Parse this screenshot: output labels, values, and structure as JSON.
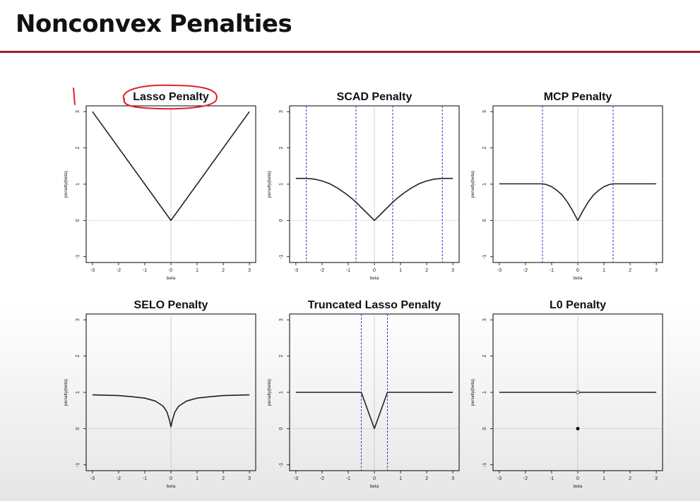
{
  "slide": {
    "title": "Nonconvex Penalties",
    "accent_color": "#9b1b30",
    "annotation_color": "#e0202c"
  },
  "chart_data": [
    {
      "type": "line",
      "title": "Lasso Penalty",
      "xlabel": "beta",
      "ylabel": "penalty(beta)",
      "xlim": [
        -3,
        3
      ],
      "ylim": [
        -1,
        3
      ],
      "xticks": [
        "-3",
        "-2",
        "-1",
        "0",
        "1",
        "2",
        "3"
      ],
      "yticks": [
        "-1",
        "0",
        "1",
        "2",
        "3"
      ],
      "vlines": [],
      "series": [
        {
          "x": [
            -3,
            0,
            3
          ],
          "y": [
            3,
            0,
            3
          ]
        }
      ],
      "points": []
    },
    {
      "type": "line",
      "title": "SCAD Penalty",
      "xlabel": "beta",
      "ylabel": "penalty(beta)",
      "xlim": [
        -3,
        3
      ],
      "ylim": [
        -1,
        3
      ],
      "xticks": [
        "-3",
        "-2",
        "-1",
        "0",
        "1",
        "2",
        "3"
      ],
      "yticks": [
        "-1",
        "0",
        "1",
        "2",
        "3"
      ],
      "vlines": [
        -2.6,
        -0.7,
        0.7,
        2.6
      ],
      "series": [
        {
          "x": [
            -3.0,
            -2.6,
            -2.3,
            -2.0,
            -1.7,
            -1.4,
            -1.1,
            -0.85,
            -0.7,
            -0.35,
            0.0,
            0.35,
            0.7,
            0.85,
            1.1,
            1.4,
            1.7,
            2.0,
            2.3,
            2.6,
            3.0
          ],
          "y": [
            1.16,
            1.16,
            1.14,
            1.09,
            1.01,
            0.89,
            0.74,
            0.6,
            0.5,
            0.25,
            0.0,
            0.25,
            0.5,
            0.6,
            0.74,
            0.89,
            1.01,
            1.09,
            1.14,
            1.16,
            1.16
          ]
        }
      ],
      "points": []
    },
    {
      "type": "line",
      "title": "MCP Penalty",
      "xlabel": "beta",
      "ylabel": "penalty(beta)",
      "xlim": [
        -3,
        3
      ],
      "ylim": [
        -1,
        3
      ],
      "xticks": [
        "-3",
        "-2",
        "-1",
        "0",
        "1",
        "2",
        "3"
      ],
      "yticks": [
        "-1",
        "0",
        "1",
        "2",
        "3"
      ],
      "vlines": [
        -1.35,
        1.35
      ],
      "series": [
        {
          "x": [
            -3.0,
            -1.35,
            -1.2,
            -1.0,
            -0.8,
            -0.6,
            -0.4,
            -0.2,
            0.0,
            0.2,
            0.4,
            0.6,
            0.8,
            1.0,
            1.2,
            1.35,
            3.0
          ],
          "y": [
            1.01,
            1.01,
            0.99,
            0.93,
            0.83,
            0.7,
            0.51,
            0.27,
            0.0,
            0.27,
            0.51,
            0.7,
            0.83,
            0.93,
            0.99,
            1.01,
            1.01
          ]
        }
      ],
      "points": []
    },
    {
      "type": "line",
      "title": "SELO Penalty",
      "xlabel": "beta",
      "ylabel": "penalty(beta)",
      "xlim": [
        -3,
        3
      ],
      "ylim": [
        -1,
        3
      ],
      "xticks": [
        "-3",
        "-2",
        "-1",
        "0",
        "1",
        "2",
        "3"
      ],
      "yticks": [
        "-1",
        "0",
        "1",
        "2",
        "3"
      ],
      "vlines": [],
      "series": [
        {
          "x": [
            -3.0,
            -2.0,
            -1.5,
            -1.0,
            -0.6,
            -0.3,
            -0.15,
            -0.05,
            0.0,
            0.05,
            0.15,
            0.3,
            0.6,
            1.0,
            1.5,
            2.0,
            3.0
          ],
          "y": [
            0.93,
            0.91,
            0.88,
            0.84,
            0.76,
            0.62,
            0.46,
            0.22,
            0.05,
            0.22,
            0.46,
            0.62,
            0.76,
            0.84,
            0.88,
            0.91,
            0.93
          ]
        }
      ],
      "points": []
    },
    {
      "type": "line",
      "title": "Truncated Lasso Penalty",
      "xlabel": "beta",
      "ylabel": "penalty(beta)",
      "xlim": [
        -3,
        3
      ],
      "ylim": [
        -1,
        3
      ],
      "xticks": [
        "-3",
        "-2",
        "-1",
        "0",
        "1",
        "2",
        "3"
      ],
      "yticks": [
        "-1",
        "0",
        "1",
        "2",
        "3"
      ],
      "vlines": [
        -0.5,
        0.5
      ],
      "series": [
        {
          "x": [
            -3.0,
            -0.5,
            0.0,
            0.5,
            3.0
          ],
          "y": [
            1.0,
            1.0,
            0.0,
            1.0,
            1.0
          ]
        }
      ],
      "points": []
    },
    {
      "type": "line",
      "title": "L0 Penalty",
      "xlabel": "beta",
      "ylabel": "penalty(beta)",
      "xlim": [
        -3,
        3
      ],
      "ylim": [
        -1,
        3
      ],
      "xticks": [
        "-3",
        "-2",
        "-1",
        "0",
        "1",
        "2",
        "3"
      ],
      "yticks": [
        "-1",
        "0",
        "1",
        "2",
        "3"
      ],
      "vlines": [],
      "series": [
        {
          "x": [
            -3.0,
            3.0
          ],
          "y": [
            1.0,
            1.0
          ]
        }
      ],
      "points": [
        {
          "x": 0,
          "y": 1,
          "style": "open"
        },
        {
          "x": 0,
          "y": 0,
          "style": "filled"
        }
      ]
    }
  ]
}
